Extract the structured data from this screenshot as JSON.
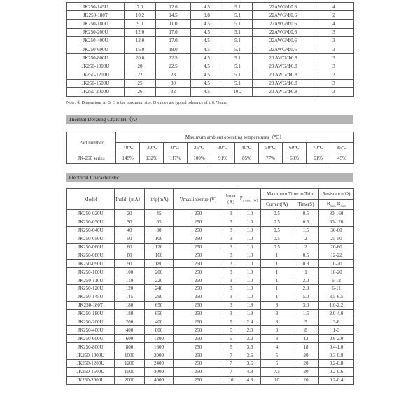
{
  "dimensions_table": {
    "rows": [
      [
        "JK250-145U",
        "7.0",
        "12.6",
        "4.5",
        "5.1",
        "22AWG/Φ0.6",
        "4"
      ],
      [
        "JK250-180T",
        "10.2",
        "14.5",
        "3.8",
        "5.1",
        "22AWG/Φ0.6",
        "2"
      ],
      [
        "JK250-180U",
        "9.0",
        "11.0",
        "4.5",
        "5.1",
        "22AWG/Φ0.6",
        "4"
      ],
      [
        "JK250-200U",
        "12.0",
        "17.0",
        "4.5",
        "5.1",
        "22AWG/Φ0.6",
        "3"
      ],
      [
        "JK250-400U",
        "12.0",
        "17.0",
        "4.5",
        "5.1",
        "22AWG/Φ0.6",
        "3"
      ],
      [
        "JK250-600U",
        "16.0",
        "18.0",
        "4.5",
        "5.1",
        "22AWG/Φ0.6",
        "3"
      ],
      [
        "JK250-800U",
        "20.0",
        "22.5",
        "4.5",
        "5.1",
        "20 AWG/Φ0.8",
        "3"
      ],
      [
        "JK250-1000U",
        "20",
        "22.5",
        "4.5",
        "5.1",
        "20 AWG/Φ0.8",
        "3"
      ],
      [
        "JK250-1200U",
        "22",
        "28",
        "4.5",
        "5.1",
        "20 AWG/Φ0.8",
        "3"
      ],
      [
        "JK250-1500U",
        "25",
        "30",
        "4.5",
        "5.1",
        "20 AWG/Φ0.8",
        "3"
      ],
      [
        "JK250-2000U",
        "26",
        "32",
        "4.5",
        "10.2",
        "20 AWG/Φ0.8",
        "3"
      ]
    ],
    "note": "Note: ①    Dimensions A, B, C is the maximum size, D values are typical tolerance of ± 0.75mm."
  },
  "thermal": {
    "title": "Thermal Derating Chart-IH（A）",
    "part_header": "Part number",
    "group_header": "Maximum ambient operating temperatures（℃）",
    "temps": [
      "-40℃",
      "-20℃",
      "0℃",
      "25℃",
      "30℃",
      "40℃",
      "50℃",
      "60℃",
      "70℃",
      "85℃"
    ],
    "row_label": "JK-250 series",
    "values": [
      "148%",
      "132%",
      "117%",
      "100%",
      "91%",
      "85%",
      "77%",
      "68%",
      "61%",
      "45%"
    ]
  },
  "electrical": {
    "title": "Electrical Characteristic",
    "headers": {
      "model": "Model",
      "ihold": "Ihold（mA）",
      "itrip": "Itrip(mA)",
      "vmax": "Vmax interrupt(V)",
      "imax": "Imax（A）",
      "pd": "P",
      "pd_sub": "d max（W）",
      "trip": "Maximum Time to Trip",
      "current": "Current(A)",
      "time": "Time(S)",
      "res": "Resistance(Ω)",
      "rmin": "R",
      "rmin_sub": "min-",
      "rmax": " R",
      "rmax_sub": "max"
    },
    "rows": [
      [
        "JK250-020U",
        "20",
        "45",
        "250",
        "3",
        "1.0",
        "0.5",
        "0.5",
        "80-160"
      ],
      [
        "JK250-030U",
        "30",
        "65",
        "250",
        "3",
        "1.0",
        "0.5",
        "0.5",
        "60-120"
      ],
      [
        "JK250-040U",
        "40",
        "80",
        "250",
        "3",
        "1.0",
        "0.5",
        "1.5",
        "30-60"
      ],
      [
        "JK250-050U",
        "50",
        "100",
        "250",
        "3",
        "1.0",
        "0.5",
        "2",
        "25-50"
      ],
      [
        "JK250-060U",
        "60",
        "120",
        "250",
        "3",
        "1.0",
        "0.5",
        "2",
        "20-60"
      ],
      [
        "JK250-080U",
        "80",
        "160",
        "250",
        "3",
        "1.0",
        "1",
        "0.5",
        "12-22"
      ],
      [
        "JK250-090U",
        "90",
        "180",
        "250",
        "3",
        "1.0",
        "1",
        "0.8",
        "10-20"
      ],
      [
        "JK250-100U",
        "100",
        "200",
        "250",
        "3",
        "1.0",
        "1",
        "1",
        "10-20"
      ],
      [
        "JK250-110U",
        "110",
        "220",
        "250",
        "3",
        "1.0",
        "1",
        "2.0",
        "6-12"
      ],
      [
        "JK250-120U",
        "120",
        "240",
        "250",
        "3",
        "1.0",
        "1",
        "2.0",
        "6-11"
      ],
      [
        "JK250-145U",
        "145",
        "290",
        "250",
        "3",
        "1.0",
        "1",
        "5.0",
        "3.5-6.5"
      ],
      [
        "JK250-180T",
        "180",
        "650",
        "250",
        "3",
        "1.8",
        "3",
        "3.0",
        "1.0-2.2"
      ],
      [
        "JK250-180U",
        "180",
        "650",
        "250",
        "3",
        "1.8",
        "3",
        "1.5",
        "2.0-4.0"
      ],
      [
        "JK250-200U",
        "200",
        "400",
        "250",
        "5",
        "2.4",
        "3",
        "5",
        "3-6"
      ],
      [
        "JK250-400U",
        "400",
        "800",
        "250",
        "5",
        "2.8",
        "3",
        "8",
        "1-3"
      ],
      [
        "JK250-600U",
        "600",
        "1200",
        "250",
        "5",
        "3.2",
        "3",
        "12",
        "0.6-2.0"
      ],
      [
        "JK250-800U",
        "800",
        "1600",
        "250",
        "5",
        "3.6",
        "4",
        "18",
        "0.4-1.0"
      ],
      [
        "JK250-1000U",
        "1000",
        "2000",
        "250",
        "7",
        "3.6",
        "5",
        "20",
        "0.3-0.8"
      ],
      [
        "JK250-1200U",
        "1200",
        "2400",
        "250",
        "7",
        "3.6",
        "6",
        "20",
        "0.2-0.8"
      ],
      [
        "JK250-1500U",
        "1500",
        "3000",
        "250",
        "7",
        "4.8",
        "7.5",
        "20",
        "0.2-0.6"
      ],
      [
        "JK250-2000U",
        "2000",
        "4000",
        "250",
        "10",
        "4.8",
        "10",
        "20",
        "0.2-0.4"
      ]
    ]
  }
}
